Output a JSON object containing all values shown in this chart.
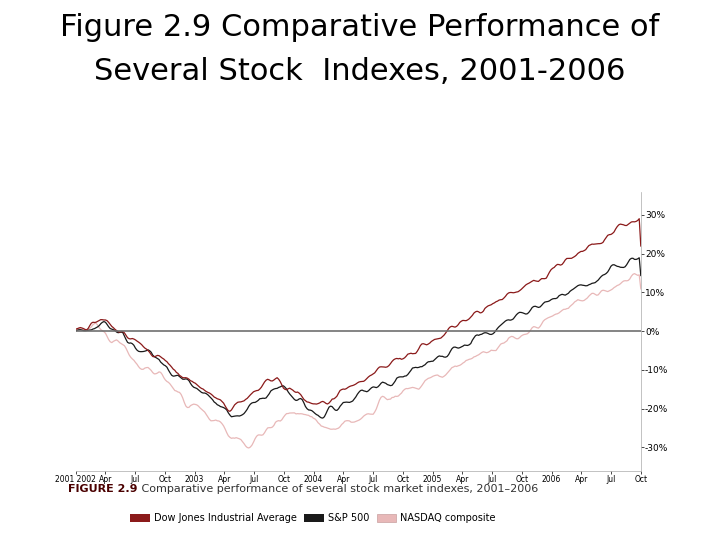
{
  "title_line1": "Figure 2.9 Comparative Performance of",
  "title_line2": "Several Stock  Indexes, 2001-2006",
  "title_fontsize": 22,
  "title_color": "#000000",
  "title_font": "DejaVu Sans",
  "caption_bold": "FIGURE 2.9",
  "caption_text": "   Comparative performance of several stock market indexes, 2001–2006",
  "caption_fontsize": 8,
  "outer_bg": "#ffffff",
  "inner_bg": "#ffffff",
  "plot_border_color": "#c8a0a0",
  "outer_box_color": "#d4a8a8",
  "caption_bg": "#d9b0b0",
  "yticks": [
    -30,
    -20,
    -10,
    0,
    10,
    20,
    30
  ],
  "ytick_labels": [
    "-30%",
    "-20%",
    "-10%",
    "0%",
    "10%",
    "20%",
    "30%"
  ],
  "ylim": [
    -36,
    36
  ],
  "xtick_labels": [
    "2001 2002",
    "Apr",
    "Jul",
    "Oct",
    "2003",
    "Apr",
    "Jul",
    "Oct",
    "2004",
    "Apr",
    "Jul",
    "Oct",
    "2005",
    "Apr",
    "Jul",
    "Oct",
    "2006",
    "Apr",
    "Jul",
    "Oct"
  ],
  "dj_color": "#8B1A1A",
  "sp_color": "#1a1a1a",
  "nasdaq_color": "#e8b8b8",
  "hline_color": "#707070",
  "hline_lw": 1.2,
  "dj_lw": 0.9,
  "sp_lw": 0.9,
  "nasdaq_lw": 0.9,
  "legend_labels": [
    "Dow Jones Industrial Average",
    "S&P 500",
    "NASDAQ composite"
  ]
}
